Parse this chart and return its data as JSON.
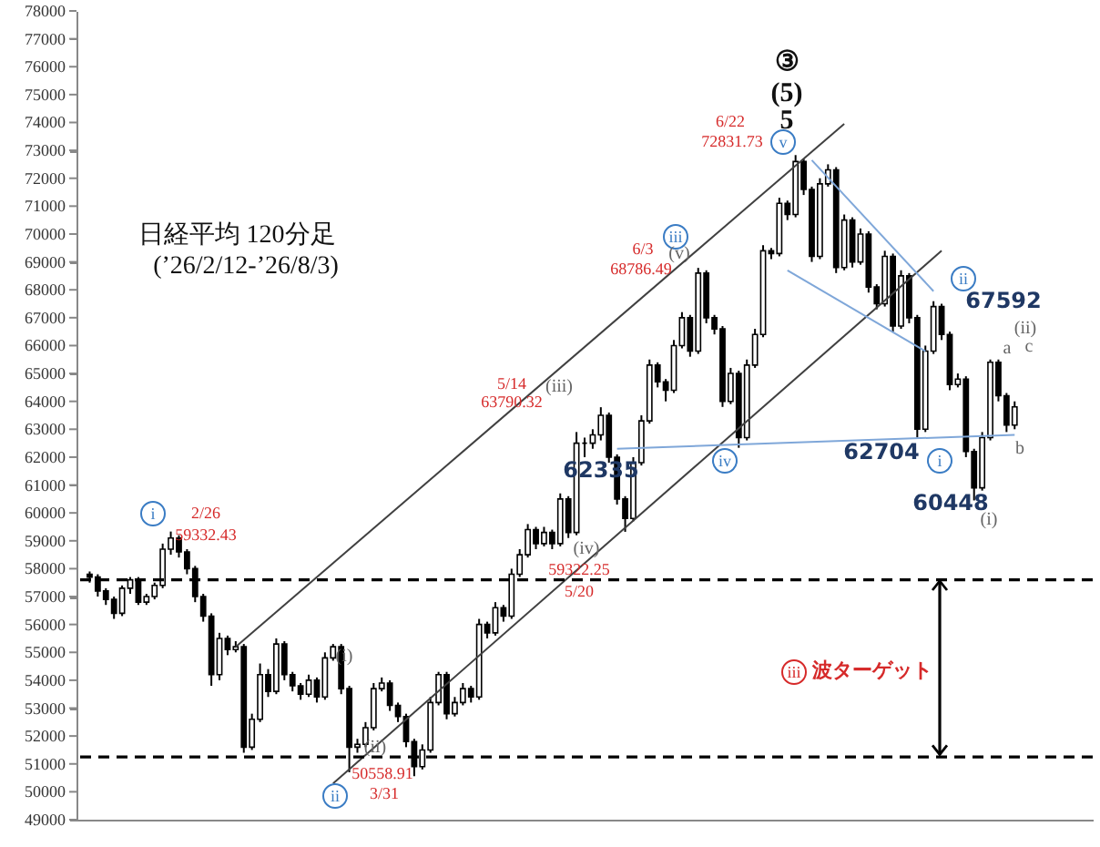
{
  "chart_data": {
    "type": "candlestick",
    "categories": [
      null,
      null,
      null,
      null,
      null,
      null,
      null,
      null,
      null,
      null,
      null,
      null,
      null,
      null,
      null,
      null,
      null,
      null,
      null,
      null,
      null,
      null,
      null,
      null,
      null,
      null,
      null,
      null,
      null,
      null,
      null,
      null,
      null,
      null,
      null,
      null,
      null,
      null,
      null,
      null,
      null,
      null,
      null,
      null,
      null,
      null,
      null,
      null,
      null,
      null,
      null,
      null,
      null,
      null,
      null,
      null,
      null,
      null,
      null,
      null,
      null,
      null,
      null,
      null,
      null,
      null,
      null,
      null,
      null,
      null,
      null,
      null,
      null,
      null,
      null,
      null,
      null,
      null,
      null,
      null,
      null,
      null,
      null,
      null,
      null,
      null,
      null,
      null,
      null,
      null,
      null,
      null,
      null,
      null,
      null,
      null,
      null,
      null,
      null,
      null,
      null,
      null,
      null,
      null,
      null,
      null,
      null,
      null,
      null,
      null,
      null,
      null,
      null,
      null,
      null
    ],
    "ohlc": [
      [
        57800,
        57900,
        57500,
        57700
      ],
      [
        57700,
        57800,
        57000,
        57200
      ],
      [
        57200,
        57300,
        56700,
        56900
      ],
      [
        56900,
        57000,
        56200,
        56400
      ],
      [
        56400,
        57400,
        56300,
        57300
      ],
      [
        57300,
        57700,
        57100,
        57600
      ],
      [
        57600,
        57700,
        56700,
        56800
      ],
      [
        56800,
        57100,
        56700,
        57000
      ],
      [
        57000,
        57500,
        56900,
        57400
      ],
      [
        57400,
        58900,
        57300,
        58700
      ],
      [
        58700,
        59332,
        58500,
        59100
      ],
      [
        59100,
        59200,
        58400,
        58600
      ],
      [
        58600,
        58700,
        57800,
        58000
      ],
      [
        58000,
        58100,
        56800,
        57000
      ],
      [
        57000,
        57100,
        56100,
        56300
      ],
      [
        56300,
        56400,
        53800,
        54200
      ],
      [
        54200,
        55700,
        54000,
        55500
      ],
      [
        55500,
        55600,
        54900,
        55100
      ],
      [
        55100,
        55400,
        55000,
        55200
      ],
      [
        55200,
        55300,
        51400,
        51600
      ],
      [
        51600,
        52800,
        51500,
        52600
      ],
      [
        52600,
        54600,
        52500,
        54200
      ],
      [
        54200,
        54400,
        53400,
        53600
      ],
      [
        53600,
        55500,
        53500,
        55300
      ],
      [
        55300,
        55400,
        54000,
        54200
      ],
      [
        54200,
        54300,
        53600,
        53800
      ],
      [
        53800,
        53900,
        53300,
        53500
      ],
      [
        53500,
        54200,
        53400,
        54000
      ],
      [
        54000,
        54100,
        53200,
        53400
      ],
      [
        53400,
        55000,
        53300,
        54800
      ],
      [
        54800,
        55300,
        54700,
        55200
      ],
      [
        55200,
        55300,
        53500,
        53700
      ],
      [
        53700,
        53800,
        50700,
        51600
      ],
      [
        51600,
        51900,
        51400,
        51700
      ],
      [
        51700,
        52500,
        51600,
        52300
      ],
      [
        52300,
        53900,
        52200,
        53700
      ],
      [
        53700,
        54100,
        53600,
        53900
      ],
      [
        53900,
        54000,
        52900,
        53100
      ],
      [
        53100,
        53200,
        52500,
        52700
      ],
      [
        52700,
        52800,
        51600,
        51800
      ],
      [
        51800,
        51900,
        50559,
        50900
      ],
      [
        50900,
        51700,
        50800,
        51500
      ],
      [
        51500,
        53400,
        51400,
        53200
      ],
      [
        53200,
        54300,
        53100,
        54200
      ],
      [
        54200,
        54300,
        52600,
        52800
      ],
      [
        52800,
        53400,
        52700,
        53200
      ],
      [
        53200,
        53900,
        53100,
        53700
      ],
      [
        53700,
        53800,
        53200,
        53400
      ],
      [
        53400,
        56200,
        53300,
        56000
      ],
      [
        56000,
        56100,
        55500,
        55700
      ],
      [
        55700,
        56800,
        55600,
        56600
      ],
      [
        56600,
        56700,
        56100,
        56300
      ],
      [
        56300,
        58000,
        56200,
        57800
      ],
      [
        57800,
        58700,
        57700,
        58500
      ],
      [
        58500,
        59600,
        58400,
        59400
      ],
      [
        59400,
        59500,
        58700,
        58900
      ],
      [
        58900,
        59500,
        58800,
        59300
      ],
      [
        59300,
        59400,
        58700,
        58900
      ],
      [
        58900,
        60700,
        58800,
        60500
      ],
      [
        60500,
        60600,
        59100,
        59300
      ],
      [
        59300,
        62900,
        59200,
        62500
      ],
      [
        62500,
        62700,
        62000,
        62500
      ],
      [
        62500,
        63000,
        62300,
        62800
      ],
      [
        62800,
        63790,
        62600,
        63500
      ],
      [
        63500,
        63600,
        61800,
        62000
      ],
      [
        62000,
        62100,
        60300,
        60500
      ],
      [
        60500,
        60600,
        59322,
        59800
      ],
      [
        59800,
        62000,
        59700,
        61800
      ],
      [
        61800,
        63500,
        61700,
        63300
      ],
      [
        63300,
        65500,
        63200,
        65300
      ],
      [
        65300,
        65400,
        64500,
        64700
      ],
      [
        64700,
        64800,
        64000,
        64400
      ],
      [
        64400,
        66200,
        64300,
        66000
      ],
      [
        66000,
        67200,
        65900,
        67000
      ],
      [
        67000,
        67100,
        65600,
        65800
      ],
      [
        65800,
        68786,
        65700,
        68600
      ],
      [
        68600,
        68700,
        66800,
        67000
      ],
      [
        67000,
        67100,
        66400,
        66600
      ],
      [
        66600,
        66700,
        63800,
        64000
      ],
      [
        64000,
        65200,
        63900,
        65000
      ],
      [
        65000,
        65100,
        62335,
        62700
      ],
      [
        62700,
        65500,
        62600,
        65300
      ],
      [
        65300,
        66600,
        65200,
        66400
      ],
      [
        66400,
        69600,
        66300,
        69400
      ],
      [
        69400,
        69500,
        69100,
        69300
      ],
      [
        69300,
        71300,
        69200,
        71100
      ],
      [
        71100,
        71200,
        70500,
        70700
      ],
      [
        70700,
        72831,
        70600,
        72600
      ],
      [
        72600,
        72700,
        71400,
        71600
      ],
      [
        71600,
        71700,
        69000,
        69200
      ],
      [
        69200,
        72000,
        69100,
        71800
      ],
      [
        71800,
        72500,
        71700,
        72300
      ],
      [
        72300,
        72400,
        68600,
        68800
      ],
      [
        68800,
        70700,
        68700,
        70500
      ],
      [
        70500,
        70600,
        68800,
        69000
      ],
      [
        69000,
        70200,
        68900,
        70000
      ],
      [
        70000,
        70100,
        67900,
        68100
      ],
      [
        68100,
        68200,
        67300,
        67500
      ],
      [
        67500,
        69400,
        67400,
        69200
      ],
      [
        69200,
        69300,
        66500,
        66700
      ],
      [
        66700,
        68700,
        66600,
        68500
      ],
      [
        68500,
        68600,
        66800,
        67000
      ],
      [
        67000,
        67100,
        62704,
        63000
      ],
      [
        63000,
        66000,
        62900,
        65800
      ],
      [
        65800,
        67592,
        65700,
        67400
      ],
      [
        67400,
        67500,
        66200,
        66400
      ],
      [
        66400,
        66500,
        64400,
        64600
      ],
      [
        64600,
        65000,
        64500,
        64800
      ],
      [
        64800,
        64900,
        62000,
        62200
      ],
      [
        62200,
        62300,
        60448,
        60900
      ],
      [
        60900,
        62900,
        60800,
        62700
      ],
      [
        62700,
        65500,
        62600,
        65400
      ],
      [
        65400,
        65500,
        64000,
        64200
      ],
      [
        64200,
        64300,
        62900,
        63150
      ],
      [
        63150,
        64000,
        63000,
        63800
      ]
    ],
    "series": [
      {
        "type": "line",
        "color": "#404040",
        "values": [
          null,
          null,
          null,
          null,
          null,
          null,
          null,
          null,
          null,
          null,
          null,
          null,
          null,
          null,
          null,
          null,
          null,
          null,
          55200,
          null,
          null,
          null,
          null,
          null,
          null,
          null,
          null,
          null,
          null,
          null,
          null,
          null,
          null,
          null,
          null,
          null,
          null,
          null,
          null,
          null,
          null,
          null,
          null,
          null,
          null,
          null,
          null,
          null,
          null,
          null,
          null,
          null,
          null,
          null,
          null,
          null,
          null,
          null,
          null,
          null,
          null,
          null,
          null,
          null,
          null,
          null,
          null,
          null,
          null,
          null,
          null,
          null,
          null,
          null,
          null,
          null,
          null,
          null,
          null,
          null,
          null,
          null,
          null,
          null,
          null,
          null,
          null,
          null,
          null,
          null,
          null,
          null,
          null,
          73950,
          null,
          null,
          null,
          null,
          null,
          null,
          null,
          null,
          null,
          null,
          null,
          null,
          null,
          null,
          null,
          null,
          null,
          null,
          null,
          null,
          null
        ]
      },
      {
        "type": "line",
        "color": "#404040",
        "values": [
          null,
          null,
          null,
          null,
          null,
          null,
          null,
          null,
          null,
          null,
          null,
          null,
          null,
          null,
          null,
          null,
          null,
          null,
          null,
          null,
          null,
          null,
          null,
          null,
          null,
          null,
          null,
          null,
          null,
          null,
          50300,
          null,
          null,
          null,
          null,
          null,
          null,
          null,
          null,
          null,
          null,
          null,
          null,
          null,
          null,
          null,
          null,
          null,
          null,
          null,
          null,
          null,
          null,
          null,
          null,
          null,
          null,
          null,
          null,
          null,
          null,
          null,
          null,
          null,
          null,
          null,
          null,
          null,
          null,
          null,
          null,
          null,
          null,
          null,
          null,
          null,
          null,
          null,
          null,
          null,
          null,
          null,
          null,
          null,
          null,
          null,
          null,
          null,
          null,
          null,
          null,
          null,
          null,
          null,
          null,
          null,
          null,
          null,
          null,
          null,
          null,
          null,
          null,
          null,
          null,
          69400,
          null,
          null,
          null,
          null,
          null,
          null,
          null,
          null,
          null
        ]
      },
      {
        "type": "line",
        "color": "#7fa7d9",
        "values": [
          null,
          null,
          null,
          null,
          null,
          null,
          null,
          null,
          null,
          null,
          null,
          null,
          null,
          null,
          null,
          null,
          null,
          null,
          null,
          null,
          null,
          null,
          null,
          null,
          null,
          null,
          null,
          null,
          null,
          null,
          null,
          null,
          null,
          null,
          null,
          null,
          null,
          null,
          null,
          null,
          null,
          null,
          null,
          null,
          null,
          null,
          null,
          null,
          null,
          null,
          null,
          null,
          null,
          null,
          null,
          null,
          null,
          null,
          null,
          null,
          null,
          null,
          null,
          null,
          null,
          null,
          null,
          null,
          null,
          null,
          null,
          null,
          null,
          null,
          null,
          null,
          null,
          null,
          null,
          null,
          null,
          null,
          null,
          null,
          null,
          null,
          null,
          null,
          null,
          72650,
          null,
          null,
          null,
          null,
          null,
          null,
          null,
          null,
          null,
          null,
          null,
          null,
          null,
          null,
          67950,
          null,
          null,
          null,
          null,
          null,
          null,
          null,
          null,
          null,
          null
        ]
      },
      {
        "type": "line",
        "color": "#7fa7d9",
        "values": [
          null,
          null,
          null,
          null,
          null,
          null,
          null,
          null,
          null,
          null,
          null,
          null,
          null,
          null,
          null,
          null,
          null,
          null,
          null,
          null,
          null,
          null,
          null,
          null,
          null,
          null,
          null,
          null,
          null,
          null,
          null,
          null,
          null,
          null,
          null,
          null,
          null,
          null,
          null,
          null,
          null,
          null,
          null,
          null,
          null,
          null,
          null,
          null,
          null,
          null,
          null,
          null,
          null,
          null,
          null,
          null,
          null,
          null,
          null,
          null,
          null,
          null,
          null,
          null,
          null,
          null,
          null,
          null,
          null,
          null,
          null,
          null,
          null,
          null,
          null,
          null,
          null,
          null,
          null,
          null,
          null,
          null,
          null,
          null,
          null,
          null,
          68700,
          null,
          null,
          null,
          null,
          null,
          null,
          null,
          null,
          null,
          null,
          null,
          null,
          null,
          null,
          null,
          null,
          65800,
          null,
          null,
          null,
          null,
          null,
          null,
          null,
          null,
          null,
          null,
          null
        ]
      },
      {
        "type": "line",
        "color": "#7fa7d9",
        "values": [
          null,
          null,
          null,
          null,
          null,
          null,
          null,
          null,
          null,
          null,
          null,
          null,
          null,
          null,
          null,
          null,
          null,
          null,
          null,
          null,
          null,
          null,
          null,
          null,
          null,
          null,
          null,
          null,
          null,
          null,
          null,
          null,
          null,
          null,
          null,
          null,
          null,
          null,
          null,
          null,
          null,
          null,
          null,
          null,
          null,
          null,
          null,
          null,
          null,
          null,
          null,
          null,
          null,
          null,
          null,
          null,
          null,
          null,
          null,
          null,
          null,
          null,
          null,
          null,
          null,
          62300,
          null,
          null,
          null,
          null,
          null,
          null,
          null,
          null,
          null,
          null,
          null,
          null,
          null,
          null,
          null,
          null,
          null,
          null,
          null,
          null,
          null,
          null,
          null,
          null,
          null,
          null,
          null,
          null,
          null,
          null,
          null,
          null,
          null,
          null,
          null,
          null,
          null,
          null,
          null,
          null,
          null,
          null,
          null,
          null,
          null,
          null,
          null,
          null,
          62800
        ]
      }
    ],
    "ylim": [
      49000,
      78000
    ],
    "yticks": [
      49000,
      50000,
      51000,
      52000,
      53000,
      54000,
      55000,
      56000,
      57000,
      58000,
      59000,
      60000,
      61000,
      62000,
      63000,
      64000,
      65000,
      66000,
      67000,
      68000,
      69000,
      70000,
      71000,
      72000,
      73000,
      74000,
      75000,
      76000,
      77000,
      78000
    ],
    "ref_lines": [
      {
        "axis": "y",
        "value": 57600,
        "color": "#000000",
        "line_style": "dashed"
      },
      {
        "axis": "y",
        "value": 51250,
        "color": "#000000",
        "line_style": "dashed"
      }
    ],
    "annotations": [
      "日経平均 120分足",
      "(’26/2/12-’26/8/3)",
      "i",
      "2/26",
      "59332.43",
      "ii",
      "50558.91",
      "3/31",
      "(i)",
      "(ii)",
      "(iii)",
      "5/14",
      "63790.32",
      "(iv)",
      "59322.25",
      "5/20",
      "6/3",
      "68786.49",
      "iii",
      "(v)",
      "62335",
      "iv",
      "③",
      "(5)",
      "5",
      "6/22",
      "72831.73",
      "v",
      "ii",
      "67592",
      "62704",
      "i",
      "60448",
      "(i)",
      "(ii)",
      "a",
      "c",
      "b",
      "iii",
      "波ターゲット"
    ],
    "tick_labels": "y"
  }
}
